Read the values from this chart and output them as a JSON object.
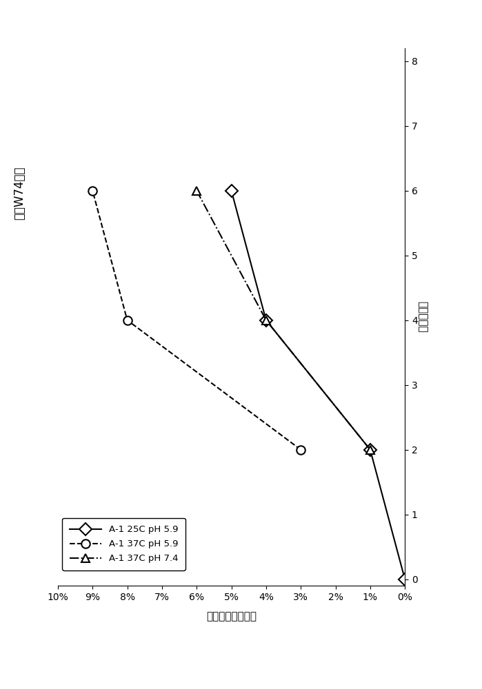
{
  "series": [
    {
      "label": "A-1 25C pH 5.9",
      "time": [
        0,
        2,
        4,
        6
      ],
      "pct": [
        0.0,
        1.0,
        4.0,
        5.0
      ],
      "linestyle": "-",
      "marker": "D",
      "markersize": 9,
      "linewidth": 1.5
    },
    {
      "label": "A-1 37C pH 5.9",
      "time": [
        2,
        4,
        6
      ],
      "pct": [
        3.0,
        8.0,
        9.0
      ],
      "linestyle": "--",
      "marker": "o",
      "markersize": 9,
      "linewidth": 1.5
    },
    {
      "label": "A-1 37C pH 7.4",
      "time": [
        2,
        4,
        6
      ],
      "pct": [
        1.0,
        4.0,
        6.0
      ],
      "linestyle": "-.",
      "marker": "^",
      "markersize": 9,
      "linewidth": 1.5
    }
  ],
  "left_title": "重锹W74氧化",
  "right_ylabel": "时间（周）",
  "bottom_xlabel": "氧化占总峰面积比",
  "time_max": 8,
  "pct_max": 10,
  "time_ticks": [
    0,
    1,
    2,
    3,
    4,
    5,
    6,
    7,
    8
  ],
  "pct_ticks": [
    0,
    1,
    2,
    3,
    4,
    5,
    6,
    7,
    8,
    9,
    10
  ],
  "pct_tick_labels": [
    "0%",
    "1%",
    "2%",
    "3%",
    "4%",
    "5%",
    "6%",
    "7%",
    "8%",
    "9%",
    "10%"
  ],
  "color": "#000000",
  "background_color": "#ffffff",
  "figsize": [
    6.99,
    10.0
  ],
  "dpi": 100
}
